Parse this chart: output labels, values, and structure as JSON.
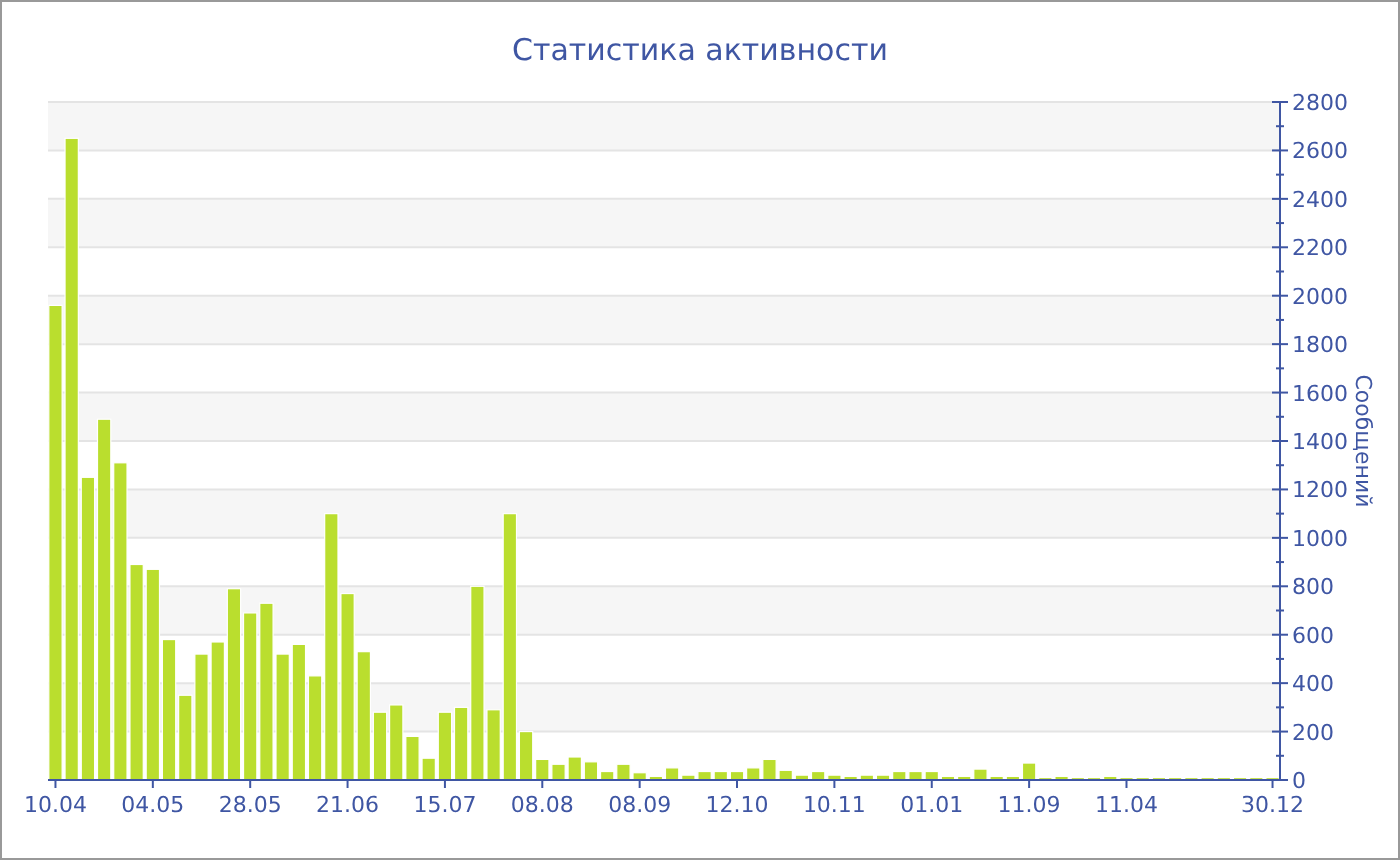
{
  "chart_data": {
    "type": "bar",
    "title": "Статистика активности",
    "ylabel": "Сообщений",
    "categories": [
      "10.04",
      null,
      null,
      null,
      null,
      null,
      "04.05",
      null,
      null,
      null,
      null,
      null,
      "28.05",
      null,
      null,
      null,
      null,
      null,
      "21.06",
      null,
      null,
      null,
      null,
      null,
      "15.07",
      null,
      null,
      null,
      null,
      null,
      "08.08",
      null,
      null,
      null,
      null,
      null,
      "08.09",
      null,
      null,
      null,
      null,
      null,
      "12.10",
      null,
      null,
      null,
      null,
      null,
      "10.11",
      null,
      null,
      null,
      null,
      null,
      "01.01",
      null,
      null,
      null,
      null,
      null,
      "11.09",
      null,
      null,
      null,
      null,
      null,
      "11.04",
      null,
      null,
      null,
      null,
      null,
      null,
      null,
      null,
      "30.12"
    ],
    "values": [
      1960,
      2650,
      1250,
      1490,
      1310,
      890,
      870,
      580,
      350,
      520,
      570,
      790,
      690,
      730,
      520,
      560,
      430,
      1100,
      770,
      530,
      280,
      310,
      180,
      90,
      280,
      300,
      800,
      290,
      1100,
      200,
      85,
      65,
      95,
      75,
      35,
      65,
      30,
      15,
      50,
      20,
      35,
      35,
      35,
      50,
      85,
      40,
      20,
      35,
      20,
      15,
      20,
      20,
      35,
      35,
      35,
      15,
      15,
      45,
      15,
      15,
      70,
      10,
      15,
      10,
      10,
      15,
      10,
      10,
      10,
      10,
      10,
      10,
      10,
      10,
      10,
      10
    ],
    "color": "#bade2e",
    "ylim": [
      0,
      2800
    ],
    "yticks": [
      0,
      200,
      400,
      600,
      800,
      1000,
      1200,
      1400,
      1600,
      1800,
      2000,
      2200,
      2400,
      2600,
      2800
    ],
    "grid": "y"
  }
}
